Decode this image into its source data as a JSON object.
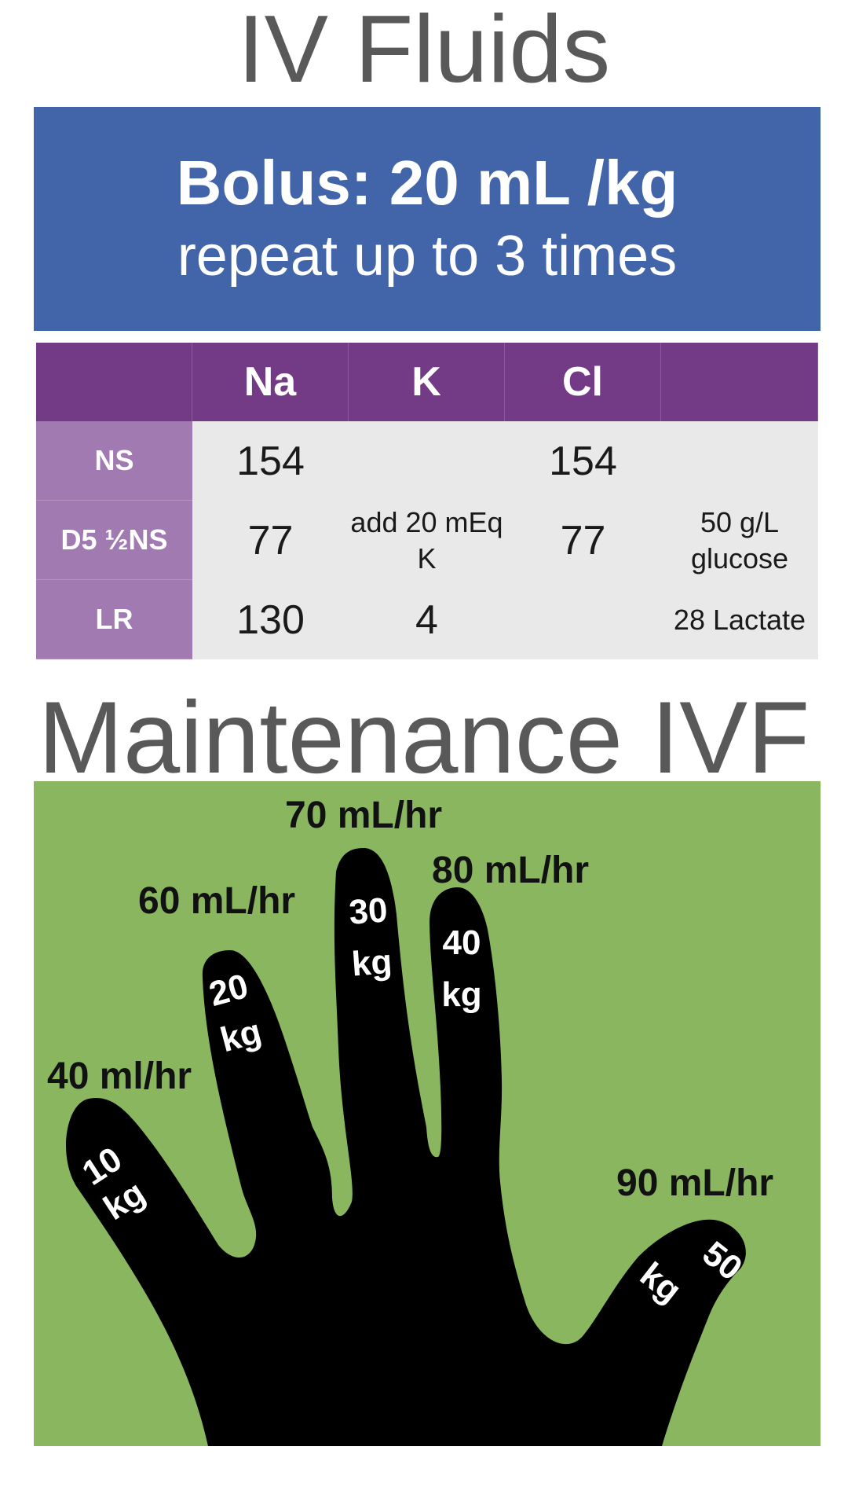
{
  "titles": {
    "iv_fluids": "IV Fluids",
    "maintenance": "Maintenance IVF"
  },
  "bolus": {
    "main": "Bolus: 20 mL /kg",
    "sub": "repeat up to 3 times"
  },
  "fluid_table": {
    "headers": [
      "",
      "Na",
      "K",
      "Cl",
      ""
    ],
    "rows": [
      {
        "label": "NS",
        "na": "154",
        "k": "",
        "cl": "154",
        "other": ""
      },
      {
        "label": "D5 ½NS",
        "na": "77",
        "k": "add 20 mEq K",
        "cl": "77",
        "other": "50 g/L glucose"
      },
      {
        "label": "LR",
        "na": "130",
        "k": "4",
        "cl": "",
        "other": "28 Lactate"
      }
    ]
  },
  "maintenance": {
    "fingers": [
      {
        "weight_num": "10",
        "weight_unit": "kg",
        "rate": "40 ml/hr"
      },
      {
        "weight_num": "20",
        "weight_unit": "kg",
        "rate": "60 mL/hr"
      },
      {
        "weight_num": "30",
        "weight_unit": "kg",
        "rate": "70 mL/hr"
      },
      {
        "weight_num": "40",
        "weight_unit": "kg",
        "rate": "80 mL/hr"
      },
      {
        "weight_num": "50",
        "weight_unit": "kg",
        "rate": "90 mL/hr"
      }
    ]
  },
  "colors": {
    "title_gray": "#595959",
    "bolus_blue": "#4264a8",
    "table_header_purple": "#733a86",
    "table_row_label_purple": "#a07ab0",
    "table_cell_gray": "#e9e9e9",
    "panel_green": "#8ab660",
    "hand_black": "#000000"
  },
  "icons": [
    "hand-icon"
  ]
}
